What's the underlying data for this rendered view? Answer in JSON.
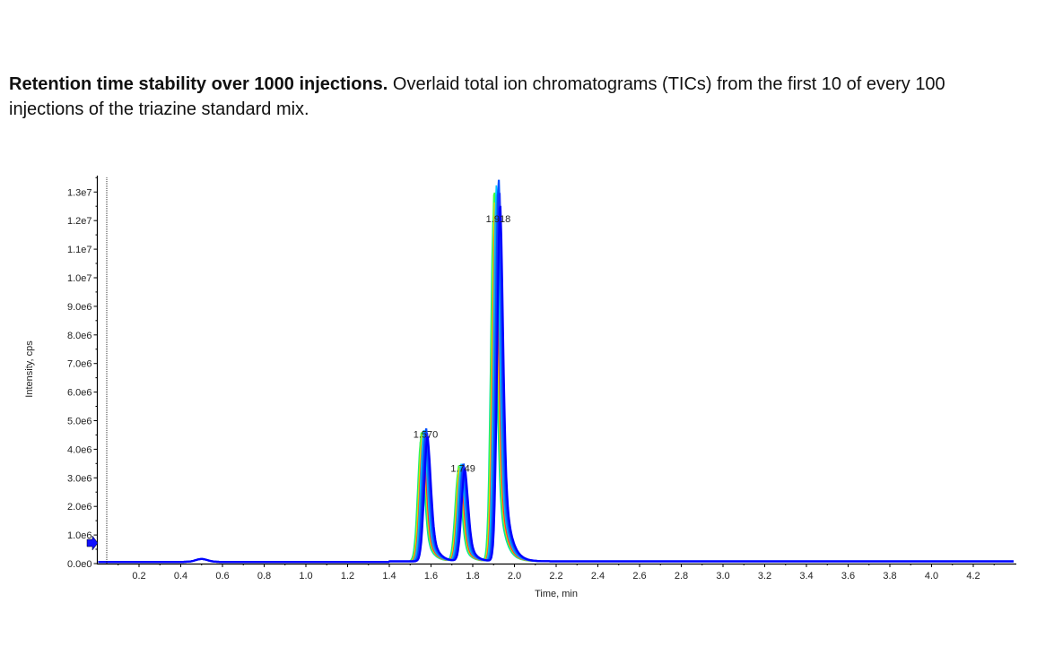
{
  "caption": {
    "bold": "Retention time stability over 1000 injections.",
    "text": " Overlaid total ion chromatograms (TICs) from the first 10 of every 100 injections of the triazine standard mix."
  },
  "chart_data": {
    "type": "line",
    "title": "",
    "xlabel": "Time, min",
    "ylabel": "Intensity, cps",
    "xlim": [
      0,
      4.4
    ],
    "ylim": [
      0,
      13500000
    ],
    "xticks": [
      "0.2",
      "0.4",
      "0.6",
      "0.8",
      "1.0",
      "1.2",
      "1.4",
      "1.6",
      "1.8",
      "2.0",
      "2.2",
      "2.4",
      "2.6",
      "2.8",
      "3.0",
      "3.2",
      "3.4",
      "3.6",
      "3.8",
      "4.0",
      "4.2"
    ],
    "yticks": [
      "0.0e0",
      "1.0e6",
      "2.0e6",
      "3.0e6",
      "4.0e6",
      "5.0e6",
      "6.0e6",
      "7.0e6",
      "8.0e6",
      "9.0e6",
      "1.0e7",
      "1.1e7",
      "1.2e7",
      "1.3e7"
    ],
    "grid": false,
    "peaks": [
      {
        "label": "1.570",
        "rt": 1.57,
        "height": 4600000
      },
      {
        "label": "1.749",
        "rt": 1.749,
        "height": 3400000
      },
      {
        "label": "1.918",
        "rt": 1.918,
        "height": 13200000
      }
    ],
    "minor_bump": {
      "rt": 0.5,
      "height": 100000
    },
    "baseline": 60000,
    "series_count": 10,
    "series_colors": [
      "#00e0a0",
      "#40ff40",
      "#ffd000",
      "#ff3030",
      "#00c8ff",
      "#10a0e0",
      "#0080ff",
      "#0050ff",
      "#1a30ff",
      "#0000ff"
    ]
  }
}
